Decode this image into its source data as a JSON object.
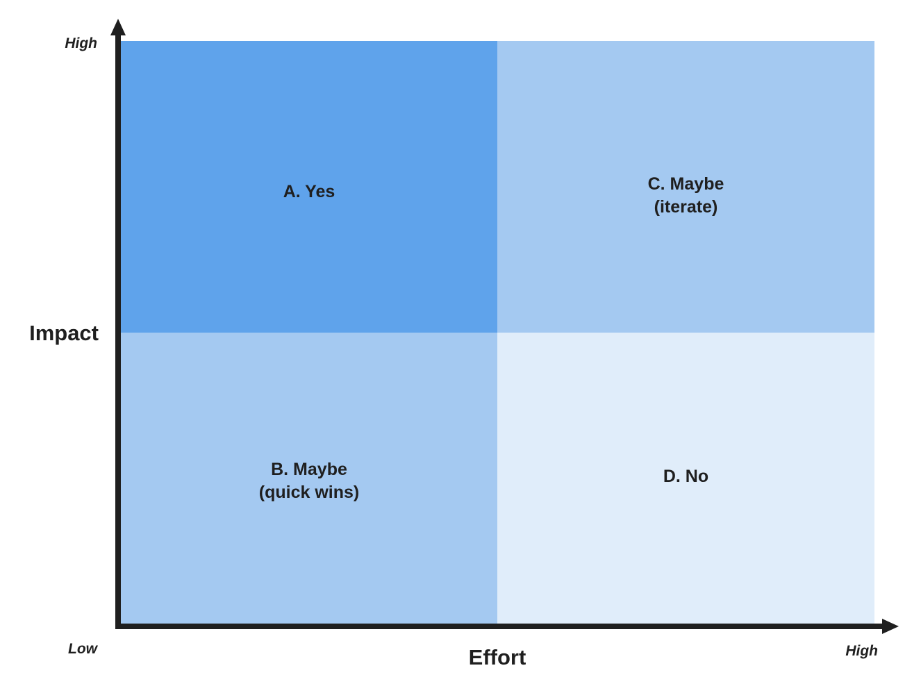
{
  "axes": {
    "y_title": "Impact",
    "x_title": "Effort",
    "y_high_label": "High",
    "x_low_label": "Low",
    "x_high_label": "High"
  },
  "quadrants": [
    {
      "label": "A. Yes",
      "impact": "High",
      "effort": "Low",
      "color": "#5fa3eb"
    },
    {
      "label": "C. Maybe\n(iterate)",
      "impact": "High",
      "effort": "High",
      "color": "#a4c9f1"
    },
    {
      "label": "B. Maybe\n(quick wins)",
      "impact": "Low",
      "effort": "Low",
      "color": "#a4c9f1"
    },
    {
      "label": "D. No",
      "impact": "Low",
      "effort": "High",
      "color": "#e0edfa"
    }
  ],
  "colors": {
    "axis": "#1f1f1f",
    "text": "#1f1f1f",
    "background": "#ffffff"
  }
}
